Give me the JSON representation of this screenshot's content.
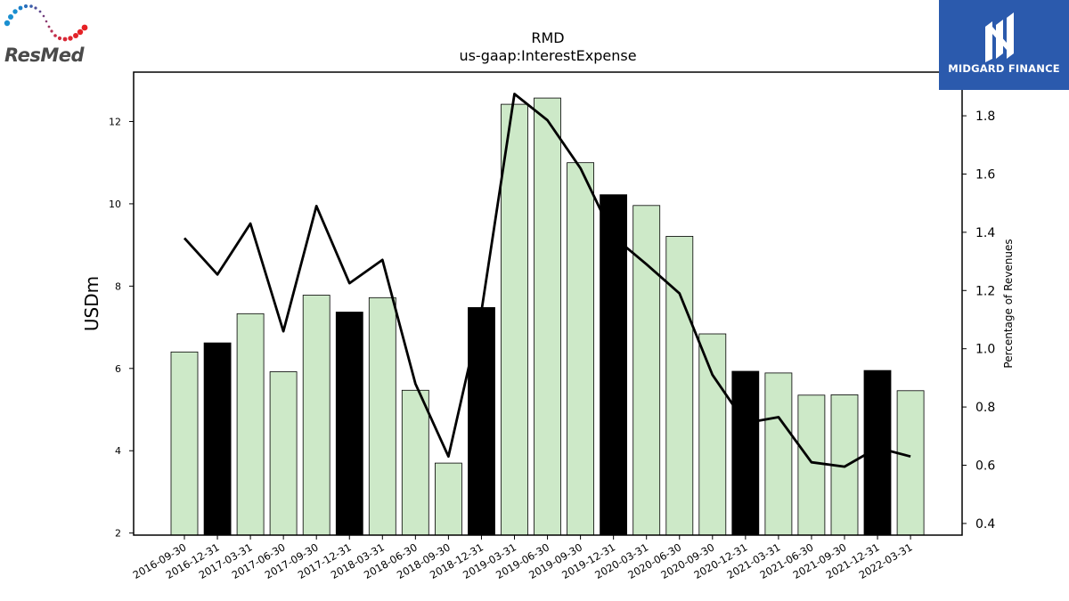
{
  "chart_data": {
    "type": "bar+line",
    "title": "RMD",
    "subtitle": "us-gaap:InterestExpense",
    "ylabel": "USDm",
    "y2label": "Percentage of Revenues",
    "ylim": [
      1.95,
      13.2
    ],
    "y2lim": [
      0.36,
      1.95
    ],
    "yticks": [
      2,
      4,
      6,
      8,
      10,
      12
    ],
    "y2ticks": [
      0.4,
      0.6,
      0.8,
      1.0,
      1.2,
      1.4,
      1.6,
      1.8
    ],
    "y2tick_labels": [
      "0.4",
      "0.6",
      "0.8",
      "1.0",
      "1.2",
      "1.4",
      "1.6",
      "1.8"
    ],
    "categories": [
      "2016-09-30",
      "2016-12-31",
      "2017-03-31",
      "2017-06-30",
      "2017-09-30",
      "2017-12-31",
      "2018-03-31",
      "2018-06-30",
      "2018-09-30",
      "2018-12-31",
      "2019-03-31",
      "2019-06-30",
      "2019-09-30",
      "2019-12-31",
      "2020-03-31",
      "2020-06-30",
      "2020-09-30",
      "2020-12-31",
      "2021-03-31",
      "2021-06-30",
      "2021-09-30",
      "2021-12-31",
      "2022-03-31"
    ],
    "series": [
      {
        "kind": "bar",
        "values": [
          6.4,
          6.62,
          7.33,
          5.92,
          7.78,
          7.37,
          7.72,
          5.47,
          3.7,
          7.48,
          12.42,
          12.57,
          11.0,
          10.22,
          9.96,
          9.21,
          6.84,
          5.93,
          5.89,
          5.35,
          5.36,
          5.95,
          5.46
        ],
        "highlight": [
          false,
          true,
          false,
          false,
          false,
          true,
          false,
          false,
          false,
          true,
          false,
          false,
          false,
          true,
          false,
          false,
          false,
          true,
          false,
          false,
          false,
          true,
          false
        ]
      },
      {
        "kind": "line",
        "axis": "right",
        "values": [
          1.38,
          1.255,
          1.43,
          1.06,
          1.49,
          1.225,
          1.305,
          0.88,
          0.63,
          1.13,
          1.875,
          1.785,
          1.62,
          1.385,
          1.29,
          1.19,
          0.91,
          0.745,
          0.765,
          0.61,
          0.595,
          0.66,
          0.63
        ]
      }
    ],
    "colors": {
      "bar_fill": "#cde9c8",
      "bar_highlight": "#000000",
      "bar_edge": "#000000",
      "line": "#000000"
    }
  },
  "logos": {
    "left_text": "ResMed",
    "right_text": "MIDGARD FINANCE"
  }
}
